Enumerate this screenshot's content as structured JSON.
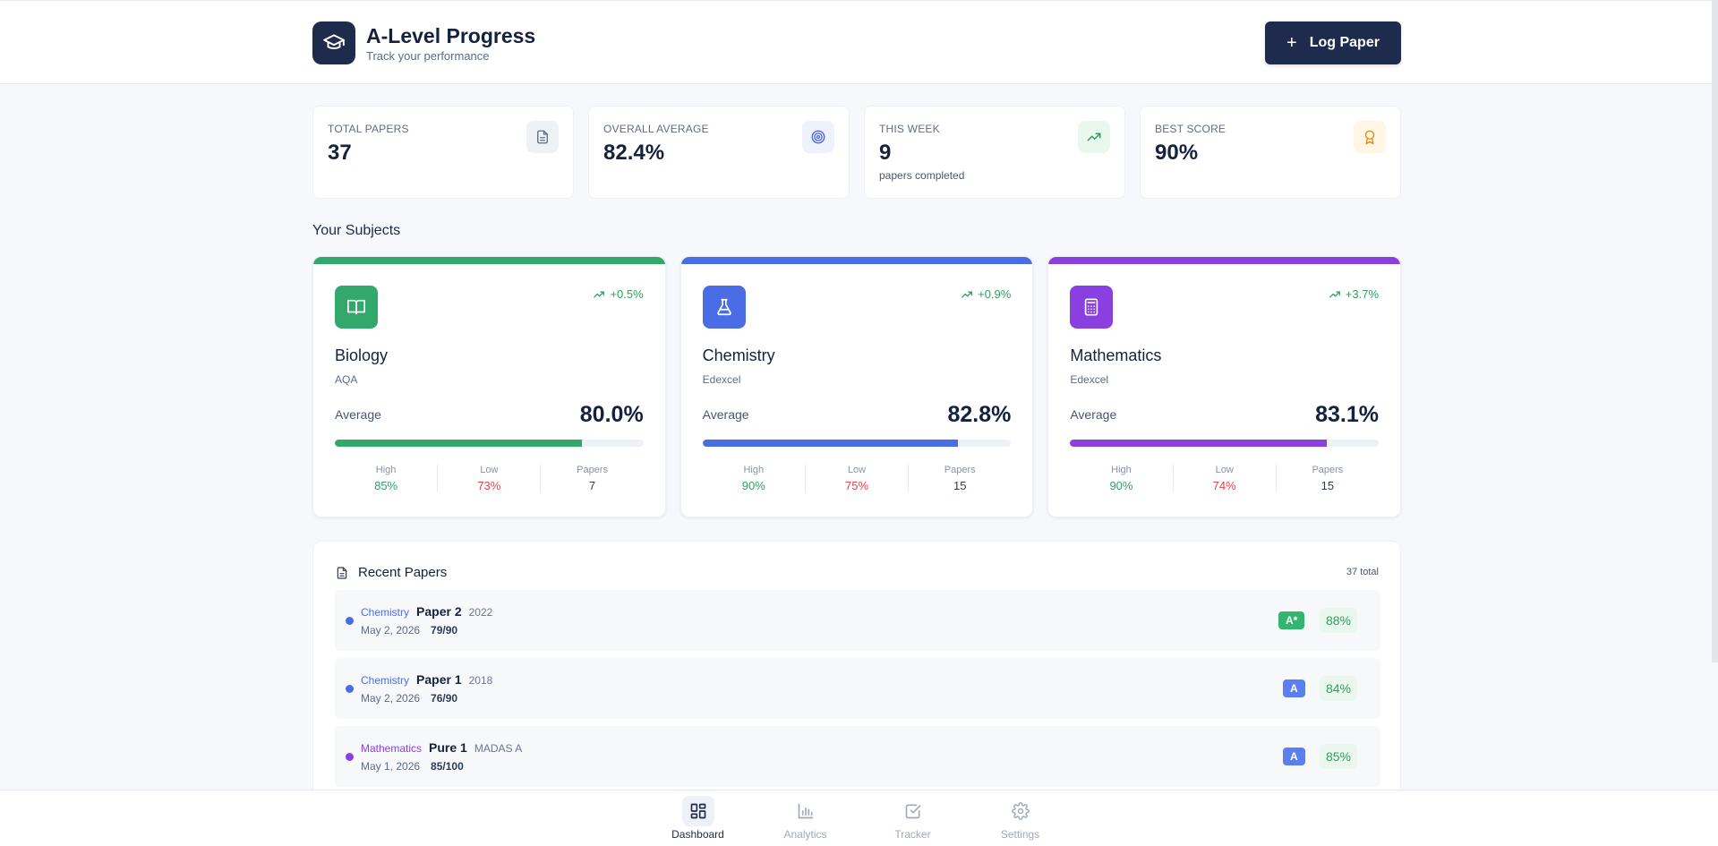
{
  "header": {
    "title": "A-Level Progress",
    "subtitle": "Track your performance",
    "log_button": "Log Paper",
    "logo_icon": "graduation-cap-icon"
  },
  "stats": [
    {
      "label": "TOTAL PAPERS",
      "value": "37",
      "note": "",
      "icon": "document-icon",
      "icon_color": "#5f6b85",
      "icon_bg": "#eef1f6"
    },
    {
      "label": "OVERALL AVERAGE",
      "value": "82.4%",
      "note": "",
      "icon": "target-icon",
      "icon_color": "#4a63e0",
      "icon_bg": "#eef2fd"
    },
    {
      "label": "THIS WEEK",
      "value": "9",
      "note": "papers completed",
      "icon": "trending-up-icon",
      "icon_color": "#2f9e63",
      "icon_bg": "#e9f7ef"
    },
    {
      "label": "BEST SCORE",
      "value": "90%",
      "note": "",
      "icon": "award-icon",
      "icon_color": "#e08a12",
      "icon_bg": "#fff6e6"
    }
  ],
  "subjects_title": "Your Subjects",
  "subjects": [
    {
      "name": "Biology",
      "board": "AQA",
      "trend": "+0.5%",
      "average_label": "Average",
      "average": "80.0%",
      "progress": 0.8,
      "color": "#33a86b",
      "icon": "book-icon",
      "high_label": "High",
      "high": "85%",
      "low_label": "Low",
      "low": "73%",
      "papers_label": "Papers",
      "papers": "7"
    },
    {
      "name": "Chemistry",
      "board": "Edexcel",
      "trend": "+0.9%",
      "average_label": "Average",
      "average": "82.8%",
      "progress": 0.828,
      "color": "#4a6de5",
      "icon": "flask-icon",
      "high_label": "High",
      "high": "90%",
      "low_label": "Low",
      "low": "75%",
      "papers_label": "Papers",
      "papers": "15"
    },
    {
      "name": "Mathematics",
      "board": "Edexcel",
      "trend": "+3.7%",
      "average_label": "Average",
      "average": "83.1%",
      "progress": 0.831,
      "color": "#8a3fe0",
      "icon": "calculator-icon",
      "high_label": "High",
      "high": "90%",
      "low_label": "Low",
      "low": "74%",
      "papers_label": "Papers",
      "papers": "15"
    }
  ],
  "recent": {
    "title": "Recent Papers",
    "total": "37 total",
    "papers": [
      {
        "subject": "Chemistry",
        "subject_color": "#4a6de5",
        "name": "Paper 2",
        "year": "2022",
        "date": "May 2, 2026",
        "marks": "79/90",
        "grade": "A*",
        "grade_color": "#33b56f",
        "percent": "88%"
      },
      {
        "subject": "Chemistry",
        "subject_color": "#4a6de5",
        "name": "Paper 1",
        "year": "2018",
        "date": "May 2, 2026",
        "marks": "76/90",
        "grade": "A",
        "grade_color": "#5b7ef0",
        "percent": "84%"
      },
      {
        "subject": "Mathematics",
        "subject_color": "#8a3fe0",
        "name": "Pure 1",
        "year": "MADAS A",
        "date": "May 1, 2026",
        "marks": "85/100",
        "grade": "A",
        "grade_color": "#5b7ef0",
        "percent": "85%"
      }
    ]
  },
  "nav": [
    {
      "label": "Dashboard",
      "icon": "dashboard-icon",
      "active": true
    },
    {
      "label": "Analytics",
      "icon": "bar-chart-icon",
      "active": false
    },
    {
      "label": "Tracker",
      "icon": "check-square-icon",
      "active": false
    },
    {
      "label": "Settings",
      "icon": "gear-icon",
      "active": false
    }
  ]
}
